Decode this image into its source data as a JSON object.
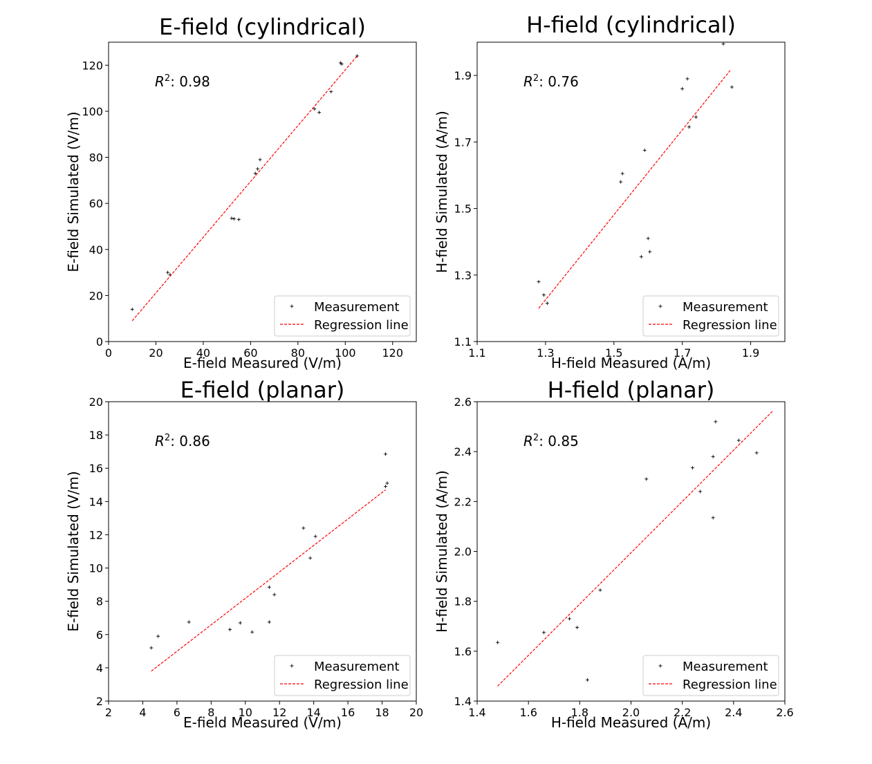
{
  "chart_data": [
    {
      "type": "scatter",
      "title": "E-field (cylindrical)",
      "xlabel": "E-field Measured (V/m)",
      "ylabel": "E-field Simulated (V/m)",
      "r2_label": "R",
      "r2_value": ": 0.98",
      "xlim": [
        0,
        130
      ],
      "ylim": [
        0,
        130
      ],
      "xticks": [
        0,
        20,
        40,
        60,
        80,
        100,
        120
      ],
      "yticks": [
        0,
        20,
        40,
        60,
        80,
        100,
        120
      ],
      "legend": [
        "Measurement",
        "Regression line"
      ],
      "legend_loc": "lower right",
      "series": [
        {
          "name": "Measurement",
          "type": "scatter",
          "x": [
            10,
            25,
            26,
            52,
            53,
            55,
            62,
            63,
            64,
            87,
            89,
            94,
            98,
            98.5,
            105
          ],
          "y": [
            14,
            30,
            29,
            53.5,
            53.3,
            53,
            73,
            75,
            79,
            101,
            99.5,
            108.5,
            121,
            120.5,
            124
          ]
        },
        {
          "name": "Regression line",
          "type": "line",
          "x": [
            10,
            105
          ],
          "y": [
            9,
            124
          ]
        }
      ]
    },
    {
      "type": "scatter",
      "title": "H-field (cylindrical)",
      "xlabel": "H-field Measured (A/m)",
      "ylabel": "H-field Simulated (A/m)",
      "r2_label": "R",
      "r2_value": ": 0.76",
      "xlim": [
        1.1,
        2.0
      ],
      "ylim": [
        1.1,
        2.0
      ],
      "xticks": [
        1.1,
        1.3,
        1.5,
        1.7,
        1.9
      ],
      "yticks": [
        1.1,
        1.3,
        1.5,
        1.7,
        1.9
      ],
      "legend": [
        "Measurement",
        "Regression line"
      ],
      "legend_loc": "lower right",
      "series": [
        {
          "name": "Measurement",
          "type": "scatter",
          "x": [
            1.28,
            1.295,
            1.305,
            1.52,
            1.525,
            1.59,
            1.58,
            1.6,
            1.605,
            1.7,
            1.715,
            1.72,
            1.74,
            1.82,
            1.845
          ],
          "y": [
            1.28,
            1.24,
            1.215,
            1.58,
            1.605,
            1.675,
            1.355,
            1.41,
            1.37,
            1.86,
            1.89,
            1.745,
            1.775,
            1.995,
            1.865
          ]
        },
        {
          "name": "Regression line",
          "type": "line",
          "x": [
            1.28,
            1.84
          ],
          "y": [
            1.2,
            1.915
          ]
        }
      ]
    },
    {
      "type": "scatter",
      "title": "E-field (planar)",
      "xlabel": "E-field Measured (V/m)",
      "ylabel": "E-field Simulated (V/m)",
      "r2_label": "R",
      "r2_value": ": 0.86",
      "xlim": [
        2,
        20
      ],
      "ylim": [
        2,
        20
      ],
      "xticks": [
        2,
        4,
        6,
        8,
        10,
        12,
        14,
        16,
        18,
        20
      ],
      "yticks": [
        2,
        4,
        6,
        8,
        10,
        12,
        14,
        16,
        18,
        20
      ],
      "legend": [
        "Measurement",
        "Regression line"
      ],
      "legend_loc": "lower right",
      "series": [
        {
          "name": "Measurement",
          "type": "scatter",
          "x": [
            4.5,
            4.9,
            6.7,
            9.1,
            9.7,
            10.4,
            11.4,
            11.4,
            11.7,
            13.4,
            13.8,
            14.1,
            18.2,
            18.3,
            18.2
          ],
          "y": [
            5.2,
            5.9,
            6.75,
            6.3,
            6.7,
            6.15,
            6.75,
            8.85,
            8.4,
            12.4,
            10.6,
            11.9,
            14.9,
            15.1,
            16.85
          ]
        },
        {
          "name": "Regression line",
          "type": "line",
          "x": [
            4.5,
            18.2
          ],
          "y": [
            3.8,
            14.7
          ]
        }
      ]
    },
    {
      "type": "scatter",
      "title": "H-field (planar)",
      "xlabel": "H-field Measured (A/m)",
      "ylabel": "H-field Simulated (A/m)",
      "r2_label": "R",
      "r2_value": ": 0.85",
      "xlim": [
        1.4,
        2.6
      ],
      "ylim": [
        1.4,
        2.6
      ],
      "xticks": [
        1.4,
        1.6,
        1.8,
        2.0,
        2.2,
        2.4,
        2.6
      ],
      "yticks": [
        1.4,
        1.6,
        1.8,
        2.0,
        2.2,
        2.4,
        2.6
      ],
      "tick_decimals": 1,
      "legend": [
        "Measurement",
        "Regression line"
      ],
      "legend_loc": "lower right",
      "series": [
        {
          "name": "Measurement",
          "type": "scatter",
          "x": [
            1.48,
            1.66,
            1.76,
            1.79,
            1.83,
            1.88,
            2.06,
            2.24,
            2.27,
            2.32,
            2.32,
            2.33,
            2.42,
            2.49
          ],
          "y": [
            1.635,
            1.675,
            1.73,
            1.695,
            1.485,
            1.845,
            2.29,
            2.335,
            2.24,
            2.38,
            2.135,
            2.52,
            2.445,
            2.395
          ]
        },
        {
          "name": "Regression line",
          "type": "line",
          "x": [
            1.48,
            2.555
          ],
          "y": [
            1.46,
            2.565
          ]
        }
      ]
    }
  ]
}
